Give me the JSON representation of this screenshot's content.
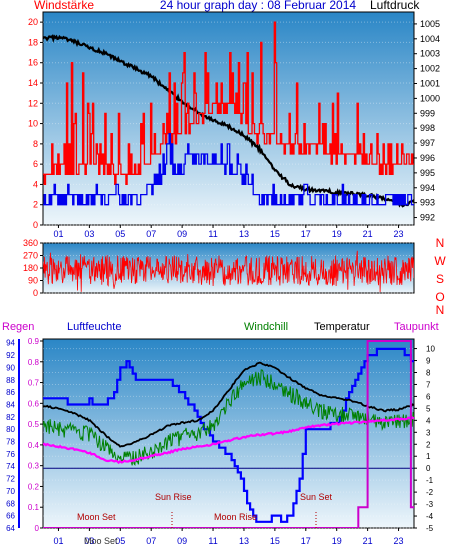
{
  "header": {
    "title": "24 hour graph day : 08 Februar 2014",
    "left_label": "Windstärke",
    "right_label": "Luftdruck"
  },
  "colors": {
    "gust": "#ff0000",
    "wind": "#0000ee",
    "pressure": "#000000",
    "direction": "#ff0000",
    "humidity": "#0000ff",
    "windchill": "#008000",
    "temperature": "#000000",
    "dewpoint": "#ff00ff",
    "rain": "#cc00cc",
    "label_magenta": "#cc00cc",
    "sky_top": "#2a86c6",
    "sky_bottom": "#eef6fb",
    "freeze_line": "#000080"
  },
  "panel3_labels": {
    "rain": "Regen",
    "humidity": "Luftfeuchte",
    "windchill": "Windchill",
    "temperature": "Temperatur",
    "dewpoint": "Taupunkt"
  },
  "direction_axis_letters": [
    "N",
    "W",
    "S",
    "O",
    "N"
  ],
  "events": {
    "sun_rise": "Sun Rise",
    "sun_set": "Sun Set",
    "moon_rise": "Moon Rise",
    "moon_set_1": "Moon Set",
    "moon_set_2": "Moon Set",
    "bottom_moon_overlap": "Moo Set"
  },
  "chart_data": [
    {
      "type": "line",
      "name_hint": "wind_and_pressure",
      "x_ticks": [
        "01",
        "03",
        "05",
        "07",
        "09",
        "11",
        "13",
        "15",
        "17",
        "19",
        "21",
        "23"
      ],
      "x_range_hours": [
        0,
        24
      ],
      "left_axis": {
        "ticks": [
          0,
          2,
          4,
          6,
          8,
          10,
          12,
          14,
          16,
          18,
          20
        ],
        "ylim": [
          0,
          21
        ]
      },
      "right_axis": {
        "ticks": [
          992,
          993,
          994,
          995,
          996,
          997,
          998,
          999,
          1000,
          1001,
          1002,
          1003,
          1004,
          1005
        ],
        "ylim": [
          991.5,
          1005.8
        ]
      },
      "series": [
        {
          "key": "pressure",
          "axis": "right",
          "x": [
            0,
            1,
            2,
            3,
            4,
            5,
            6,
            7,
            8,
            9,
            10,
            11,
            12,
            13,
            14,
            15,
            16,
            17,
            18,
            19,
            20,
            21,
            22,
            22.8,
            23.4,
            24
          ],
          "y": [
            1004.0,
            1004.1,
            1003.8,
            1003.4,
            1003.0,
            1002.5,
            1002.0,
            1001.5,
            1000.6,
            999.8,
            999.1,
            998.5,
            998.1,
            997.5,
            996.6,
            995.2,
            994.2,
            993.9,
            993.8,
            993.7,
            993.6,
            993.5,
            993.3,
            993.0,
            992.8,
            993.2
          ]
        },
        {
          "key": "gust",
          "axis": "left",
          "style": "step_noisy",
          "x": [
            0,
            2,
            4,
            5,
            6,
            7,
            8,
            9,
            10,
            11,
            12,
            13,
            14,
            15,
            16,
            17,
            18,
            19,
            20,
            21,
            22,
            23,
            24
          ],
          "baseline": [
            4,
            5,
            5,
            4,
            5,
            6,
            8,
            8,
            10,
            11,
            11,
            10,
            8,
            8,
            7,
            7,
            7,
            6,
            6,
            6,
            5,
            5,
            6
          ],
          "peaks": [
            17,
            16,
            14,
            11,
            13,
            14,
            17,
            19,
            20,
            20,
            19,
            18,
            20,
            21,
            15,
            15,
            14,
            14,
            13,
            12,
            11,
            10,
            11
          ]
        },
        {
          "key": "wind",
          "axis": "left",
          "style": "step_noisy",
          "x": [
            0,
            2,
            4,
            5,
            6,
            7,
            8,
            9,
            10,
            11,
            12,
            13,
            14,
            15,
            16,
            17,
            18,
            19,
            20,
            21,
            22,
            23,
            24
          ],
          "baseline": [
            2,
            2,
            2,
            2,
            2,
            3,
            5,
            5,
            6,
            6,
            5,
            4,
            2,
            2,
            2,
            2,
            2,
            2,
            2,
            2,
            2,
            2,
            2
          ],
          "peaks": [
            4,
            4,
            4,
            4,
            4,
            6,
            9,
            9,
            9,
            9,
            9,
            7,
            4,
            4,
            4,
            4,
            4,
            4,
            4,
            4,
            4,
            4,
            4
          ]
        }
      ]
    },
    {
      "type": "line",
      "name_hint": "wind_direction",
      "left_axis": {
        "ticks": [
          0,
          90,
          180,
          270,
          360
        ],
        "ylim": [
          0,
          360
        ]
      },
      "x_range_hours": [
        0,
        24
      ],
      "series": [
        {
          "key": "direction",
          "style": "noisy",
          "center": 160,
          "amplitude": 110
        }
      ]
    },
    {
      "type": "line",
      "name_hint": "temperature_humidity",
      "x_ticks": [
        "01",
        "03",
        "05",
        "07",
        "09",
        "11",
        "13",
        "15",
        "17",
        "19",
        "21",
        "23"
      ],
      "x_range_hours": [
        0,
        24
      ],
      "humidity_axis": {
        "ticks": [
          64,
          66,
          68,
          70,
          72,
          74,
          76,
          78,
          80,
          82,
          84,
          86,
          88,
          90,
          92,
          94
        ],
        "ylim": [
          64,
          94.6
        ]
      },
      "rain_axis": {
        "ticks": [
          0,
          0.1,
          0.2,
          0.3,
          0.4,
          0.5,
          0.6,
          0.7,
          0.8,
          0.9
        ],
        "ylim": [
          0,
          0.9
        ]
      },
      "temp_axis": {
        "ticks": [
          -5,
          -4,
          -3,
          -2,
          -1,
          0,
          1,
          2,
          3,
          4,
          5,
          6,
          7,
          8,
          9,
          10
        ],
        "ylim": [
          -5,
          10.8
        ]
      },
      "series": [
        {
          "key": "humidity",
          "axis": "humidity",
          "x": [
            0,
            1,
            2,
            3,
            4,
            4.6,
            5,
            5.5,
            6,
            7,
            8,
            9,
            10,
            11,
            12,
            12.6,
            13,
            13.5,
            14,
            14.5,
            15,
            15.5,
            16,
            16.6,
            17,
            18,
            19,
            20,
            21,
            22,
            23,
            24
          ],
          "y": [
            85,
            85,
            84,
            84.5,
            84,
            86,
            90,
            91,
            87.5,
            88,
            88,
            86,
            82,
            78,
            76,
            73,
            70,
            66,
            64.5,
            65,
            66,
            65,
            66,
            72,
            80,
            80,
            81,
            87,
            92,
            93,
            93,
            91
          ]
        },
        {
          "key": "temperature",
          "axis": "temp",
          "x": [
            0,
            1,
            2,
            3,
            4,
            5,
            6,
            7,
            8,
            9,
            10,
            11,
            12,
            13,
            14,
            15,
            16,
            17,
            18,
            19,
            20,
            21,
            22,
            23,
            24
          ],
          "y": [
            5.2,
            5.0,
            4.6,
            4.0,
            2.8,
            1.8,
            2.2,
            2.8,
            3.5,
            3.8,
            4.0,
            4.8,
            6.5,
            8.2,
            8.8,
            8.4,
            7.5,
            6.7,
            6.1,
            5.9,
            5.6,
            5.2,
            4.8,
            4.9,
            5.3
          ]
        },
        {
          "key": "windchill",
          "axis": "temp",
          "x": [
            0,
            1,
            2,
            3,
            4,
            5,
            6,
            7,
            8,
            9,
            10,
            11,
            12,
            13,
            14,
            15,
            16,
            17,
            18,
            19,
            20,
            21,
            22,
            23,
            24
          ],
          "y": [
            3.8,
            3.2,
            3.0,
            2.8,
            1.8,
            0.8,
            0.9,
            1.4,
            2.2,
            2.6,
            2.9,
            3.6,
            5.5,
            7.0,
            7.6,
            7.2,
            6.2,
            5.5,
            4.7,
            4.5,
            4.3,
            4.1,
            3.8,
            3.9,
            4.1
          ],
          "noise": 0.7
        },
        {
          "key": "dewpoint",
          "axis": "temp",
          "x": [
            0,
            1,
            2,
            3,
            4,
            5,
            6,
            7,
            8,
            9,
            10,
            11,
            12,
            13,
            14,
            15,
            16,
            17,
            18,
            19,
            20,
            21,
            22,
            23,
            24
          ],
          "y": [
            2.0,
            1.8,
            1.6,
            1.3,
            0.7,
            0.5,
            0.7,
            1.0,
            1.3,
            1.6,
            1.8,
            2.0,
            2.3,
            2.6,
            2.8,
            2.9,
            3.1,
            3.4,
            3.6,
            3.7,
            3.8,
            3.9,
            4.0,
            4.1,
            4.2
          ]
        },
        {
          "key": "rain",
          "axis": "rain",
          "style": "step",
          "x": [
            0,
            20.4,
            20.4,
            21,
            21,
            23.8,
            23.8,
            24
          ],
          "y": [
            0,
            0,
            0.1,
            0.1,
            0.9,
            0.9,
            0.1,
            0.1
          ]
        }
      ]
    }
  ]
}
